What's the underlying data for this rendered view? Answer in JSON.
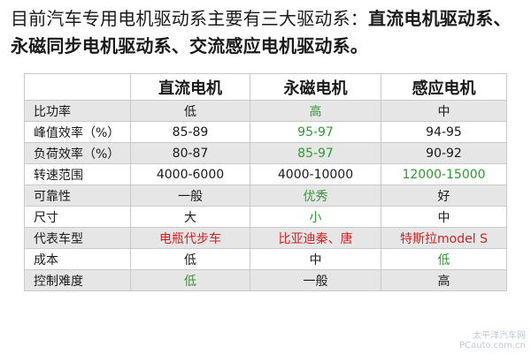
{
  "intro": {
    "normal": "目前汽车专用电机驱动系主要有三大驱动系：",
    "bold": "直流电机驱动系、永磁同步电机驱动系、交流感应电机驱动系。"
  },
  "colors": {
    "text": "#1a1a1a",
    "green": "#2e9a2e",
    "red": "#d42020",
    "band": "#e6e6e6",
    "grid": "#c9c9c9"
  },
  "table": {
    "corner": "",
    "headers": [
      "直流电机",
      "永磁电机",
      "感应电机"
    ],
    "rows": [
      {
        "label": "比功率",
        "cells": [
          {
            "text": "低",
            "color": "#1a1a1a"
          },
          {
            "text": "高",
            "color": "#2e9a2e"
          },
          {
            "text": "中",
            "color": "#1a1a1a"
          }
        ]
      },
      {
        "label": "峰值效率（%）",
        "cells": [
          {
            "text": "85-89",
            "color": "#1a1a1a"
          },
          {
            "text": "95-97",
            "color": "#2e9a2e"
          },
          {
            "text": "94-95",
            "color": "#1a1a1a"
          }
        ]
      },
      {
        "label": "负荷效率（%）",
        "cells": [
          {
            "text": "80-87",
            "color": "#1a1a1a"
          },
          {
            "text": "85-97",
            "color": "#2e9a2e"
          },
          {
            "text": "90-92",
            "color": "#1a1a1a"
          }
        ]
      },
      {
        "label": "转速范围",
        "cells": [
          {
            "text": "4000-6000",
            "color": "#1a1a1a"
          },
          {
            "text": "4000-10000",
            "color": "#1a1a1a"
          },
          {
            "text": "12000-15000",
            "color": "#2e9a2e"
          }
        ]
      },
      {
        "label": "可靠性",
        "cells": [
          {
            "text": "一般",
            "color": "#1a1a1a"
          },
          {
            "text": "优秀",
            "color": "#2e9a2e"
          },
          {
            "text": "好",
            "color": "#1a1a1a"
          }
        ]
      },
      {
        "label": "尺寸",
        "cells": [
          {
            "text": "大",
            "color": "#1a1a1a"
          },
          {
            "text": "小",
            "color": "#2e9a2e"
          },
          {
            "text": "中",
            "color": "#1a1a1a"
          }
        ]
      },
      {
        "label": "代表车型",
        "cells": [
          {
            "text": "电瓶代步车",
            "color": "#d42020"
          },
          {
            "text": "比亚迪秦、唐",
            "color": "#d42020"
          },
          {
            "text": "特斯拉model S",
            "color": "#d42020"
          }
        ]
      },
      {
        "label": "成本",
        "cells": [
          {
            "text": "低",
            "color": "#1a1a1a"
          },
          {
            "text": "中",
            "color": "#1a1a1a"
          },
          {
            "text": "低",
            "color": "#2e9a2e"
          }
        ]
      },
      {
        "label": "控制难度",
        "cells": [
          {
            "text": "低",
            "color": "#2e9a2e"
          },
          {
            "text": "一般",
            "color": "#1a1a1a"
          },
          {
            "text": "高",
            "color": "#1a1a1a"
          }
        ]
      }
    ]
  },
  "watermark": {
    "line1": "太平洋汽车网",
    "line2": "PCauto.com.cn"
  }
}
